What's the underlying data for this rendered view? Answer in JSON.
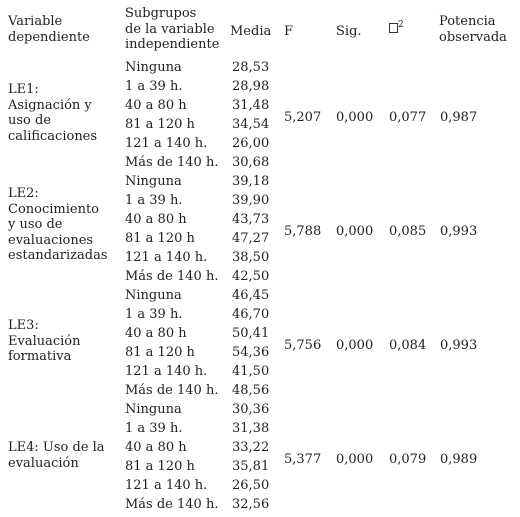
{
  "headers": {
    "variable_line1": "Variable",
    "variable_line2": "dependiente",
    "subgroup_line1": "Subgrupos",
    "subgroup_line2": "de la variable",
    "subgroup_line3": "independiente",
    "media": "Media",
    "f": "F",
    "sig": "Sig.",
    "eta_sup": "2",
    "power_line1": "Potencia",
    "power_line2": "observada"
  },
  "blocks": [
    {
      "label_lines": [
        "LE1:",
        "Asignación y",
        "uso de",
        "calificaciones"
      ],
      "rows": [
        {
          "subgroup": "Ninguna",
          "media": "28,53"
        },
        {
          "subgroup": "1 a 39 h.",
          "media": "28,98"
        },
        {
          "subgroup": "40 a 80 h",
          "media": "31,48"
        },
        {
          "subgroup": "81 a 120 h",
          "media": "34,54"
        },
        {
          "subgroup": "121 a 140 h.",
          "media": "26,00"
        },
        {
          "subgroup": "Más de 140 h.",
          "media": "30,68"
        }
      ],
      "f": "5,207",
      "sig": "0,000",
      "eta": "0,077",
      "power": "0,987"
    },
    {
      "label_lines": [
        "LE2:",
        "Conocimiento",
        "y uso de",
        "evaluaciones",
        "estandarizadas"
      ],
      "rows": [
        {
          "subgroup": "Ninguna",
          "media": "39,18"
        },
        {
          "subgroup": "1 a 39 h.",
          "media": "39,90"
        },
        {
          "subgroup": "40 a 80 h",
          "media": "43,73"
        },
        {
          "subgroup": "81 a 120 h",
          "media": "47,27"
        },
        {
          "subgroup": "121 a 140 h.",
          "media": "38,50"
        },
        {
          "subgroup": "Más de 140 h.",
          "media": "42,50"
        }
      ],
      "f": "5,788",
      "sig": "0,000",
      "eta": "0,085",
      "power": "0,993"
    },
    {
      "label_lines": [
        "LE3:",
        "Evaluación",
        "formativa"
      ],
      "rows": [
        {
          "subgroup": "Ninguna",
          "media": "46,45"
        },
        {
          "subgroup": "1 a 39 h.",
          "media": "46,70"
        },
        {
          "subgroup": "40 a 80 h",
          "media": "50,41"
        },
        {
          "subgroup": "81 a 120 h",
          "media": "54,36"
        },
        {
          "subgroup": "121 a 140 h.",
          "media": "41,50"
        },
        {
          "subgroup": "Más de 140 h.",
          "media": "48,56"
        }
      ],
      "f": "5,756",
      "sig": "0,000",
      "eta": "0,084",
      "power": "0,993"
    },
    {
      "label_lines": [
        "LE4: Uso de la",
        "evaluación"
      ],
      "rows": [
        {
          "subgroup": "Ninguna",
          "media": "30,36"
        },
        {
          "subgroup": "1 a 39 h.",
          "media": "31,38"
        },
        {
          "subgroup": "40 a 80 h",
          "media": "33,22"
        },
        {
          "subgroup": "81 a 120 h",
          "media": "35,81"
        },
        {
          "subgroup": "121 a 140 h.",
          "media": "26,50"
        },
        {
          "subgroup": "Más de 140 h.",
          "media": "32,56"
        }
      ],
      "f": "5,377",
      "sig": "0,000",
      "eta": "0,079",
      "power": "0,989"
    }
  ]
}
